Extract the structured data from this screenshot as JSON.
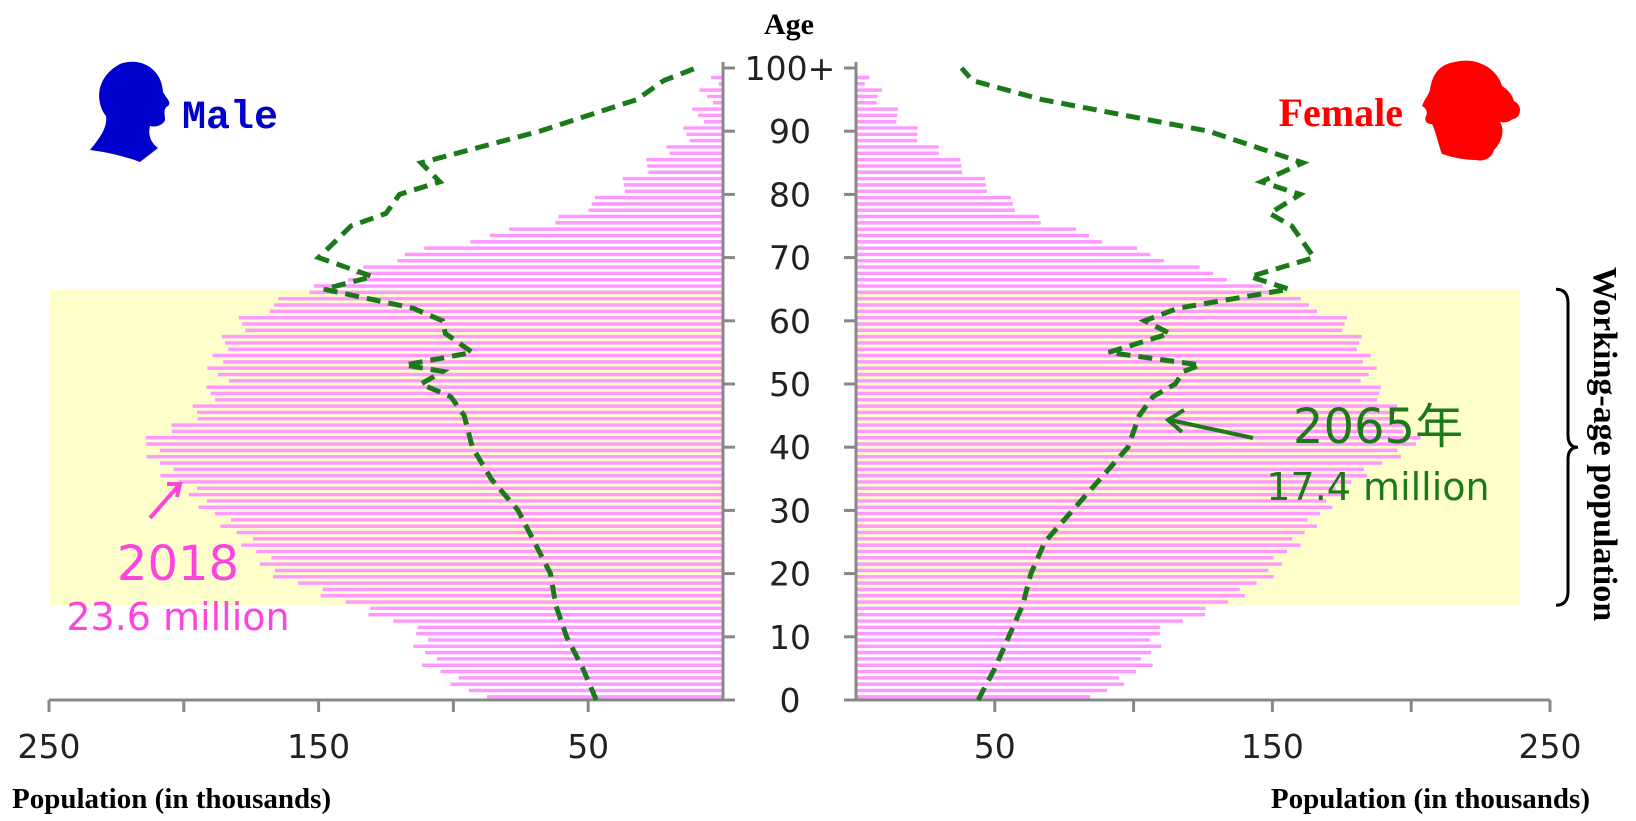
{
  "chart_data": {
    "type": "bar",
    "subtype": "population-pyramid",
    "y_axis_title": "Age",
    "y_ticks": [
      "0",
      "10",
      "20",
      "30",
      "40",
      "50",
      "60",
      "70",
      "80",
      "90",
      "100+"
    ],
    "x_ticks_left": [
      "250",
      "150",
      "50"
    ],
    "x_ticks_right": [
      "50",
      "150",
      "250"
    ],
    "xlabel_left": "Population (in thousands)",
    "xlabel_right": "Population (in thousands)",
    "xlim": [
      0,
      250
    ],
    "ylim": [
      0,
      100
    ],
    "grid": false,
    "legend": {
      "male_label": "Male",
      "female_label": "Female",
      "male_color": "#0000cc",
      "female_color": "#ff0000",
      "male_icon": "male-head-silhouette-icon",
      "female_icon": "female-head-silhouette-icon"
    },
    "working_age_band": {
      "label": "Working-age population",
      "from_age": 15,
      "to_age": 64,
      "color": "#ffffcc"
    },
    "series": [
      {
        "name": "2018",
        "style": "bars",
        "color": "#ff99ff",
        "annotation_label": "2018",
        "annotation_value": "23.6 million",
        "age_values": [
          0,
          5,
          10,
          15,
          20,
          25,
          30,
          35,
          40,
          45,
          50,
          55,
          60,
          65,
          70,
          75,
          80,
          85,
          90,
          95,
          100
        ],
        "male": [
          92,
          108,
          112,
          140,
          168,
          178,
          190,
          206,
          213,
          196,
          186,
          188,
          176,
          150,
          118,
          64,
          40,
          24,
          12,
          5,
          1
        ],
        "female": [
          88,
          104,
          108,
          134,
          150,
          160,
          168,
          182,
          201,
          195,
          184,
          184,
          174,
          145,
          106,
          68,
          50,
          34,
          20,
          7,
          1
        ]
      },
      {
        "name": "2065",
        "style": "dashed-line",
        "color": "#1a7a1a",
        "annotation_label": "2065年",
        "annotation_value": "17.4 million",
        "age_values": [
          0,
          5,
          10,
          15,
          20,
          25,
          30,
          35,
          40,
          45,
          48,
          50,
          52,
          53,
          55,
          58,
          60,
          62,
          65,
          67,
          70,
          75,
          77,
          80,
          82,
          85,
          90,
          95,
          98,
          100
        ],
        "male": [
          47,
          52,
          58,
          62,
          64,
          70,
          76,
          86,
          93,
          96,
          101,
          112,
          104,
          118,
          93,
          103,
          104,
          115,
          148,
          130,
          150,
          138,
          125,
          120,
          105,
          112,
          68,
          32,
          22,
          10
        ],
        "female": [
          44,
          50,
          55,
          60,
          63,
          68,
          78,
          88,
          98,
          102,
          107,
          115,
          118,
          124,
          91,
          113,
          104,
          116,
          156,
          142,
          165,
          157,
          149,
          160,
          146,
          161,
          127,
          67,
          42,
          38
        ]
      }
    ]
  }
}
